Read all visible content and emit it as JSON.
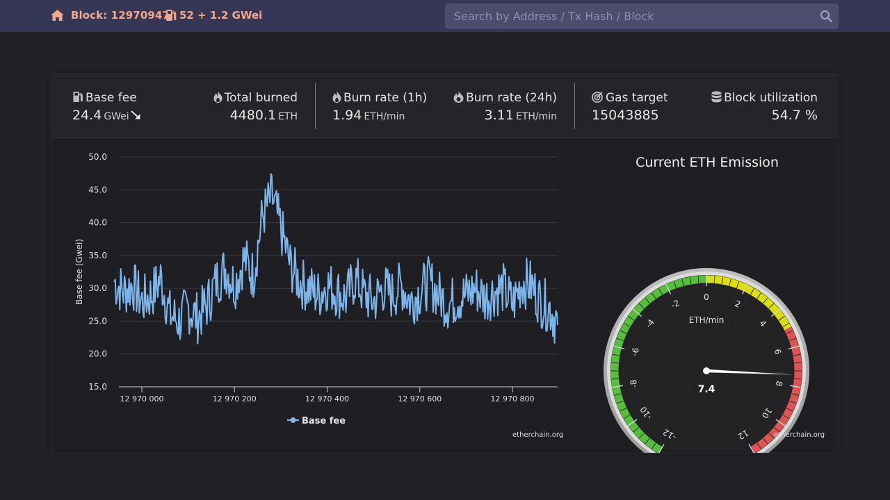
{
  "header": {
    "block_label": "Block: 12970947",
    "gas_label": "52 + 1.2 GWei",
    "search_placeholder": "Search by Address / Tx Hash / Block"
  },
  "stats": {
    "base_fee": {
      "label": "Base fee",
      "value": "24.4",
      "unit": "GWei",
      "trend": "down"
    },
    "total_burned": {
      "label": "Total burned",
      "value": "4480.1",
      "unit": "ETH"
    },
    "burn_rate_1h": {
      "label": "Burn rate (1h)",
      "value": "1.94",
      "unit": "ETH/min"
    },
    "burn_rate_24h": {
      "label": "Burn rate (24h)",
      "value": "3.11",
      "unit": "ETH/min"
    },
    "gas_target": {
      "label": "Gas target",
      "value": "15043885"
    },
    "block_utilization": {
      "label": "Block utilization",
      "value": "54.7 %"
    }
  },
  "colors": {
    "header_bg": "#363656",
    "accent": "#f2a98a",
    "line": "#7cb5ec",
    "gauge_green": "#55bf3b",
    "gauge_yellow": "#dddf0d",
    "gauge_red": "#df5353"
  },
  "chart_data": [
    {
      "type": "line",
      "title": "",
      "xlabel": "",
      "ylabel": "Base fee (Gwei)",
      "ylim": [
        15,
        50
      ],
      "yticks": [
        "50.0",
        "45.0",
        "40.0",
        "35.0",
        "30.0",
        "25.0",
        "20.0",
        "15.0"
      ],
      "xlim": [
        12970000,
        12970947
      ],
      "xticks": [
        "12 970 000",
        "12 970 200",
        "12 970 400",
        "12 970 600",
        "12 970 800"
      ],
      "legend": "bottom-center",
      "grid": true,
      "credit": "etherchain.org",
      "series": [
        {
          "name": "Base fee",
          "x": [
            12969990,
            12970010,
            12970030,
            12970050,
            12970070,
            12970090,
            12970110,
            12970130,
            12970150,
            12970170,
            12970190,
            12970210,
            12970230,
            12970250,
            12970270,
            12970290,
            12970310,
            12970330,
            12970350,
            12970370,
            12970390,
            12970410,
            12970430,
            12970450,
            12970470,
            12970490,
            12970510,
            12970530,
            12970550,
            12970570,
            12970590,
            12970610,
            12970630,
            12970650,
            12970670,
            12970690,
            12970710,
            12970730,
            12970750,
            12970770,
            12970790,
            12970810,
            12970830,
            12970850,
            12970870,
            12970890,
            12970910,
            12970930,
            12970947
          ],
          "y": [
            31.0,
            29.5,
            30.5,
            28.0,
            29.0,
            31.5,
            26.0,
            25.0,
            27.0,
            25.5,
            27.5,
            31.0,
            33.0,
            30.5,
            34.5,
            32.0,
            41.0,
            44.0,
            39.0,
            33.5,
            31.0,
            30.0,
            29.0,
            30.5,
            29.5,
            28.5,
            31.5,
            29.0,
            28.0,
            30.0,
            29.0,
            30.5,
            28.0,
            29.5,
            31.0,
            29.0,
            27.5,
            28.5,
            29.0,
            30.0,
            28.5,
            29.5,
            30.0,
            27.5,
            31.0,
            30.5,
            28.0,
            27.0,
            24.4
          ]
        }
      ]
    },
    {
      "type": "gauge",
      "title": "Current ETH Emission",
      "unit_label": "ETH/min",
      "value": 7.4,
      "value_label": "7.4",
      "min": -12,
      "max": 12,
      "ticks": [
        "-12",
        "-10",
        "-8",
        "-6",
        "-4",
        "-2",
        "0",
        "2",
        "4",
        "6",
        "8",
        "10",
        "12"
      ],
      "bands": [
        {
          "from": -12,
          "to": 0,
          "color": "green"
        },
        {
          "from": 0,
          "to": 5,
          "color": "yellow"
        },
        {
          "from": 5,
          "to": 12,
          "color": "red"
        }
      ],
      "credit": "etherchain.org"
    }
  ]
}
